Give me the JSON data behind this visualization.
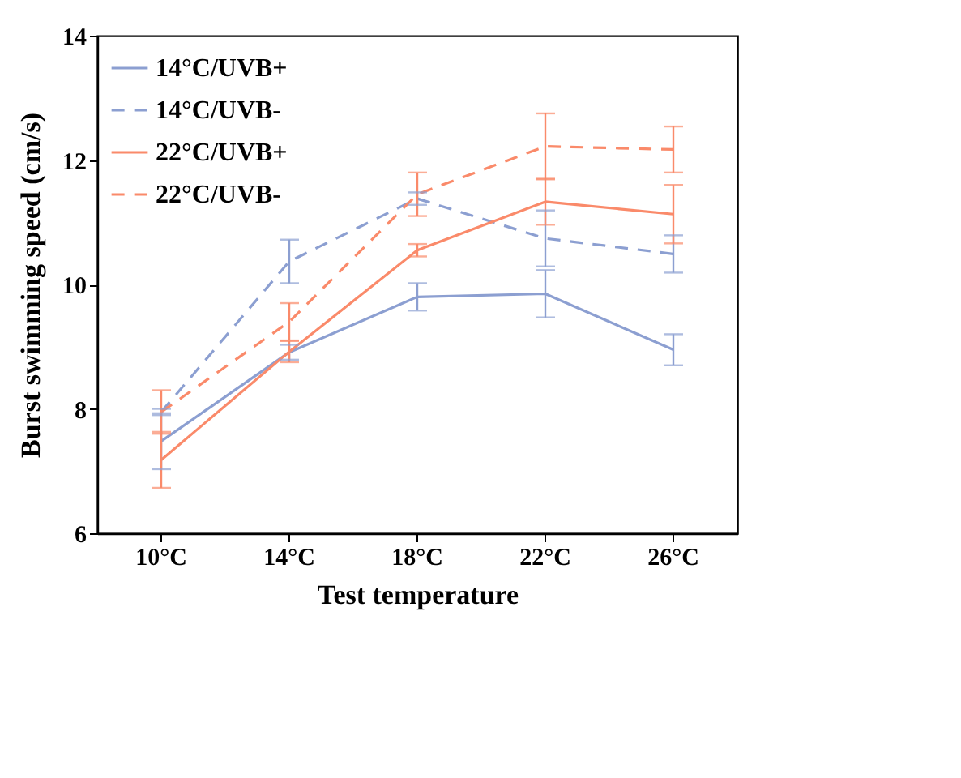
{
  "chart_data": {
    "type": "line",
    "xlabel": "Test temperature",
    "ylabel": "Burst swimming speed (cm/s)",
    "categories": [
      "10°C",
      "14°C",
      "18°C",
      "22°C",
      "26°C"
    ],
    "ylim": [
      6,
      14
    ],
    "yticks": [
      6,
      8,
      10,
      12,
      14
    ],
    "legend": "top left",
    "grid": false,
    "marker": "none",
    "series": [
      {
        "name": "14°C/UVB+",
        "color": "#8c9fd1",
        "line_style": "solid",
        "values": [
          7.48,
          8.91,
          9.8,
          9.85,
          8.95
        ],
        "errors": [
          0.45,
          0.12,
          0.22,
          0.38,
          0.25
        ]
      },
      {
        "name": "14°C/UVB-",
        "color": "#8c9fd1",
        "line_style": "dashed",
        "values": [
          7.95,
          10.37,
          11.38,
          10.74,
          10.49
        ],
        "errors": [
          0.05,
          0.35,
          0.1,
          0.45,
          0.3
        ]
      },
      {
        "name": "22°C/UVB+",
        "color": "#fa8a6a",
        "line_style": "solid",
        "values": [
          7.18,
          8.92,
          10.55,
          11.33,
          11.13
        ],
        "errors": [
          0.45,
          0.17,
          0.1,
          0.37,
          0.47
        ]
      },
      {
        "name": "22°C/UVB-",
        "color": "#fa8a6a",
        "line_style": "dashed",
        "values": [
          7.95,
          9.4,
          11.45,
          12.22,
          12.17
        ],
        "errors": [
          0.35,
          0.3,
          0.35,
          0.53,
          0.37
        ]
      }
    ]
  }
}
